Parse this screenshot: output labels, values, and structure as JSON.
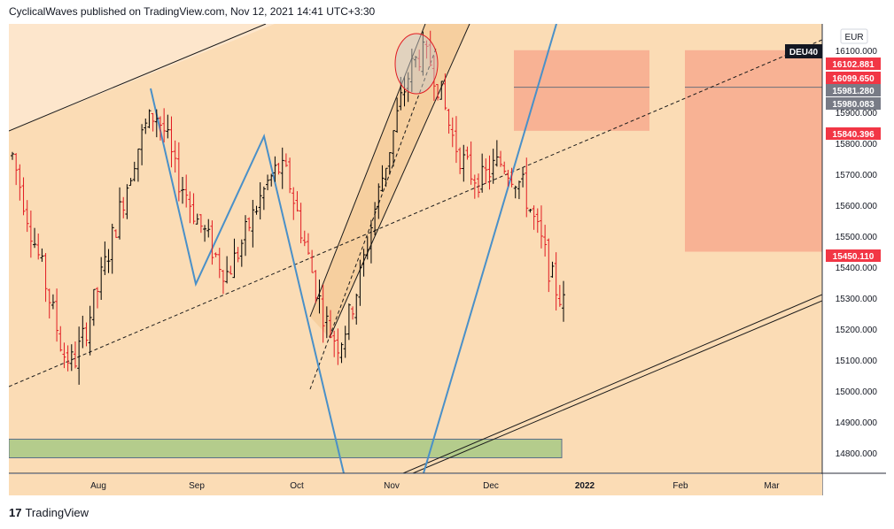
{
  "header": {
    "publisher_line": "CyclicalWaves published on TradingView.com, Nov 12, 2021 14:41 UTC+3:30"
  },
  "footer": {
    "brand_logo": "17",
    "brand_name": "TradingView"
  },
  "chart_data": {
    "type": "candlestick",
    "symbol": "DEU40",
    "currency": "EUR",
    "x_ticks": [
      "Aug",
      "Sep",
      "Oct",
      "Nov",
      "Dec",
      "2022",
      "Feb",
      "Mar"
    ],
    "y_ticks": [
      "16100.000",
      "16000.000",
      "15900.000",
      "15800.000",
      "15700.000",
      "15600.000",
      "15500.000",
      "15400.000",
      "15300.000",
      "15200.000",
      "15100.000",
      "15000.000",
      "14900.000",
      "14800.000"
    ],
    "ylim": [
      14735,
      16185
    ],
    "price_labels": [
      {
        "text": "16102.881",
        "color": "#f23645"
      },
      {
        "text": "16099.650",
        "color": "#f23645"
      },
      {
        "text": "15981.280",
        "color": "#787b86"
      },
      {
        "text": "15980.083",
        "color": "#787b86"
      },
      {
        "text": "15840.396",
        "color": "#f23645"
      },
      {
        "text": "15450.110",
        "color": "#f23645"
      }
    ],
    "zones": {
      "resistance_box_1": [
        15840,
        16100
      ],
      "resistance_box_2": [
        15450,
        16100
      ],
      "support_band": [
        14785,
        14845
      ]
    },
    "colors": {
      "background": "#fbdcb5",
      "up_candle": "#000000",
      "down_candle": "#e11b22",
      "trendline_blue": "#4a90c8",
      "zone_red": "#f8a88c",
      "zone_green": "#b4cc8c"
    },
    "series": [
      {
        "name": "path",
        "values": [
          15760,
          15630,
          15500,
          15380,
          15250,
          15120,
          15090,
          15180,
          15290,
          15400,
          15520,
          15640,
          15760,
          15850,
          15900,
          15830,
          15700,
          15640,
          15560,
          15500,
          15430,
          15380,
          15440,
          15520,
          15600,
          15670,
          15720,
          15690,
          15560,
          15430,
          15300,
          15200,
          15150,
          15240,
          15360,
          15510,
          15660,
          15790,
          15930,
          16040,
          16090,
          16060,
          15960,
          15830,
          15750,
          15700,
          15680,
          15720,
          15740,
          15700,
          15660,
          15560,
          15460,
          15350,
          15280
        ]
      }
    ]
  }
}
